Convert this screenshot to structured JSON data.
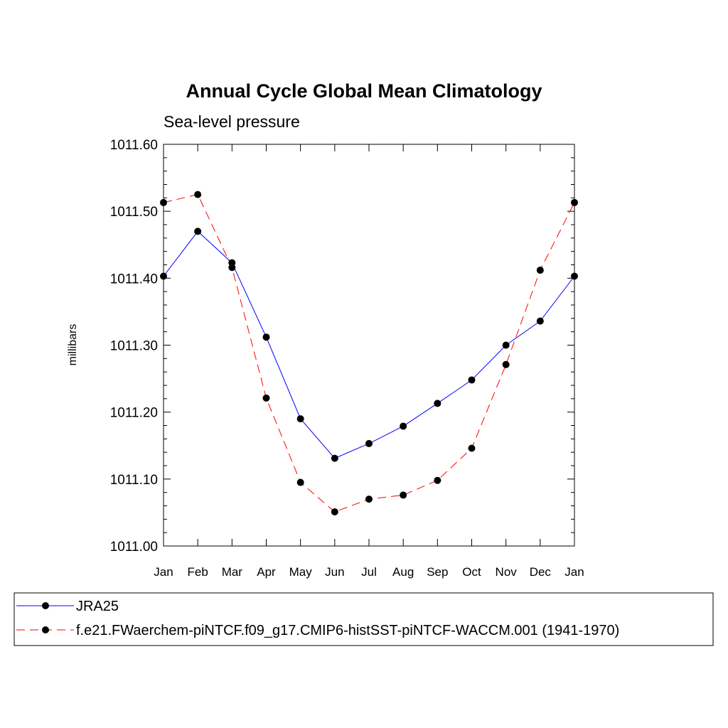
{
  "chart_data": {
    "type": "line",
    "title": "Annual Cycle Global Mean Climatology",
    "subtitle": "Sea-level pressure",
    "xlabel": "",
    "ylabel": "millibars",
    "categories": [
      "Jan",
      "Feb",
      "Mar",
      "Apr",
      "May",
      "Jun",
      "Jul",
      "Aug",
      "Sep",
      "Oct",
      "Nov",
      "Dec",
      "Jan"
    ],
    "ylim": [
      1011.0,
      1011.6
    ],
    "yticks": [
      1011.0,
      1011.1,
      1011.2,
      1011.3,
      1011.4,
      1011.5,
      1011.6
    ],
    "ytick_labels": [
      "1011.00",
      "1011.10",
      "1011.20",
      "1011.30",
      "1011.40",
      "1011.50",
      "1011.60"
    ],
    "grid": false,
    "legend_position": "bottom",
    "series": [
      {
        "name": "JRA25",
        "color": "#0000ff",
        "dash": "solid",
        "marker": "filled-circle",
        "values": [
          1011.403,
          1011.47,
          1011.423,
          1011.312,
          1011.19,
          1011.131,
          1011.153,
          1011.179,
          1011.213,
          1011.248,
          1011.3,
          1011.336,
          1011.403
        ]
      },
      {
        "name": "f.e21.FWaerchem-piNTCF.f09_g17.CMIP6-histSST-piNTCF-WACCM.001 (1941-1970)",
        "color": "#ff0000",
        "dash": "dashed",
        "marker": "filled-circle",
        "values": [
          1011.513,
          1011.525,
          1011.416,
          1011.221,
          1011.095,
          1011.051,
          1011.07,
          1011.076,
          1011.098,
          1011.146,
          1011.271,
          1011.412,
          1011.513
        ]
      }
    ]
  }
}
